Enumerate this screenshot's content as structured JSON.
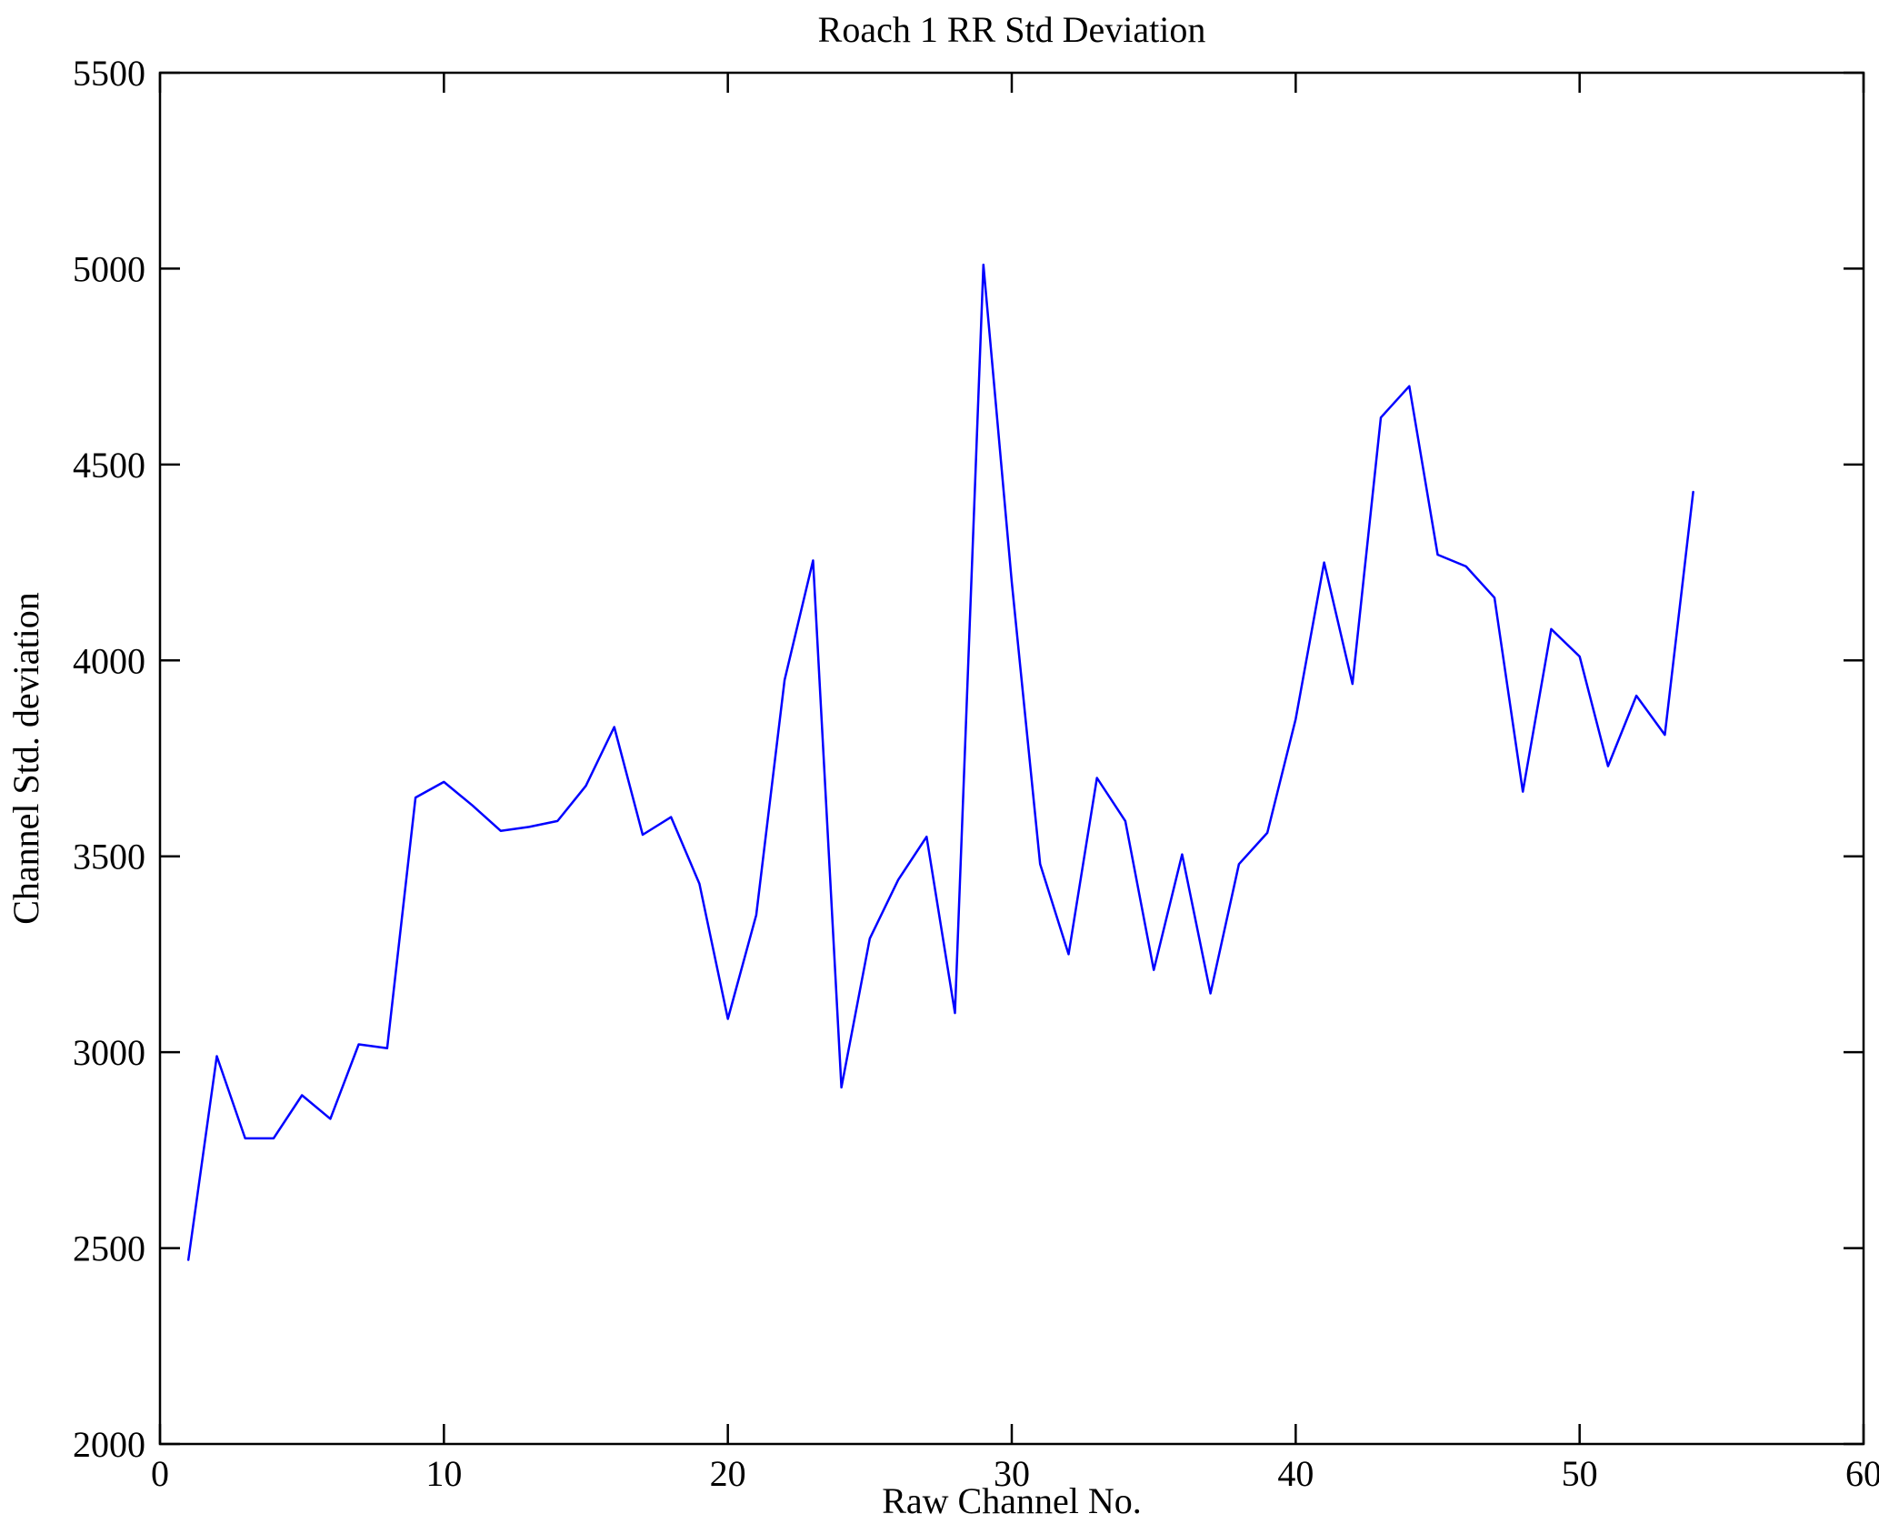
{
  "chart_data": {
    "type": "line",
    "title": "Roach 1 RR Std Deviation",
    "xlabel": "Raw Channel No.",
    "ylabel": "Channel Std. deviation",
    "xlim": [
      0,
      60
    ],
    "ylim": [
      2000,
      5500
    ],
    "xticks": [
      0,
      10,
      20,
      30,
      40,
      50,
      60
    ],
    "yticks": [
      2000,
      2500,
      3000,
      3500,
      4000,
      4500,
      5000,
      5500
    ],
    "grid": "off",
    "legend": "none",
    "line_color": "#0000ff",
    "x": [
      1,
      2,
      3,
      4,
      5,
      6,
      7,
      8,
      9,
      10,
      11,
      12,
      13,
      14,
      15,
      16,
      17,
      18,
      19,
      20,
      21,
      22,
      23,
      24,
      25,
      26,
      27,
      28,
      29,
      30,
      31,
      32,
      33,
      34,
      35,
      36,
      37,
      38,
      39,
      40,
      41,
      42,
      43,
      44,
      45,
      46,
      47,
      48,
      49,
      50,
      51,
      52,
      53,
      54
    ],
    "values": [
      2470,
      2990,
      2780,
      2780,
      2890,
      2830,
      3020,
      3010,
      3650,
      3690,
      3630,
      3565,
      3575,
      3590,
      3680,
      3830,
      3555,
      3600,
      3430,
      3085,
      3350,
      3950,
      4255,
      2910,
      3290,
      3440,
      3550,
      3100,
      5010,
      4200,
      3480,
      3250,
      3700,
      3590,
      3210,
      3505,
      3150,
      3480,
      3560,
      3850,
      4250,
      3940,
      4620,
      4700,
      4270,
      4240,
      4160,
      3665,
      4080,
      4010,
      3730,
      3910,
      3810,
      4430
    ]
  }
}
